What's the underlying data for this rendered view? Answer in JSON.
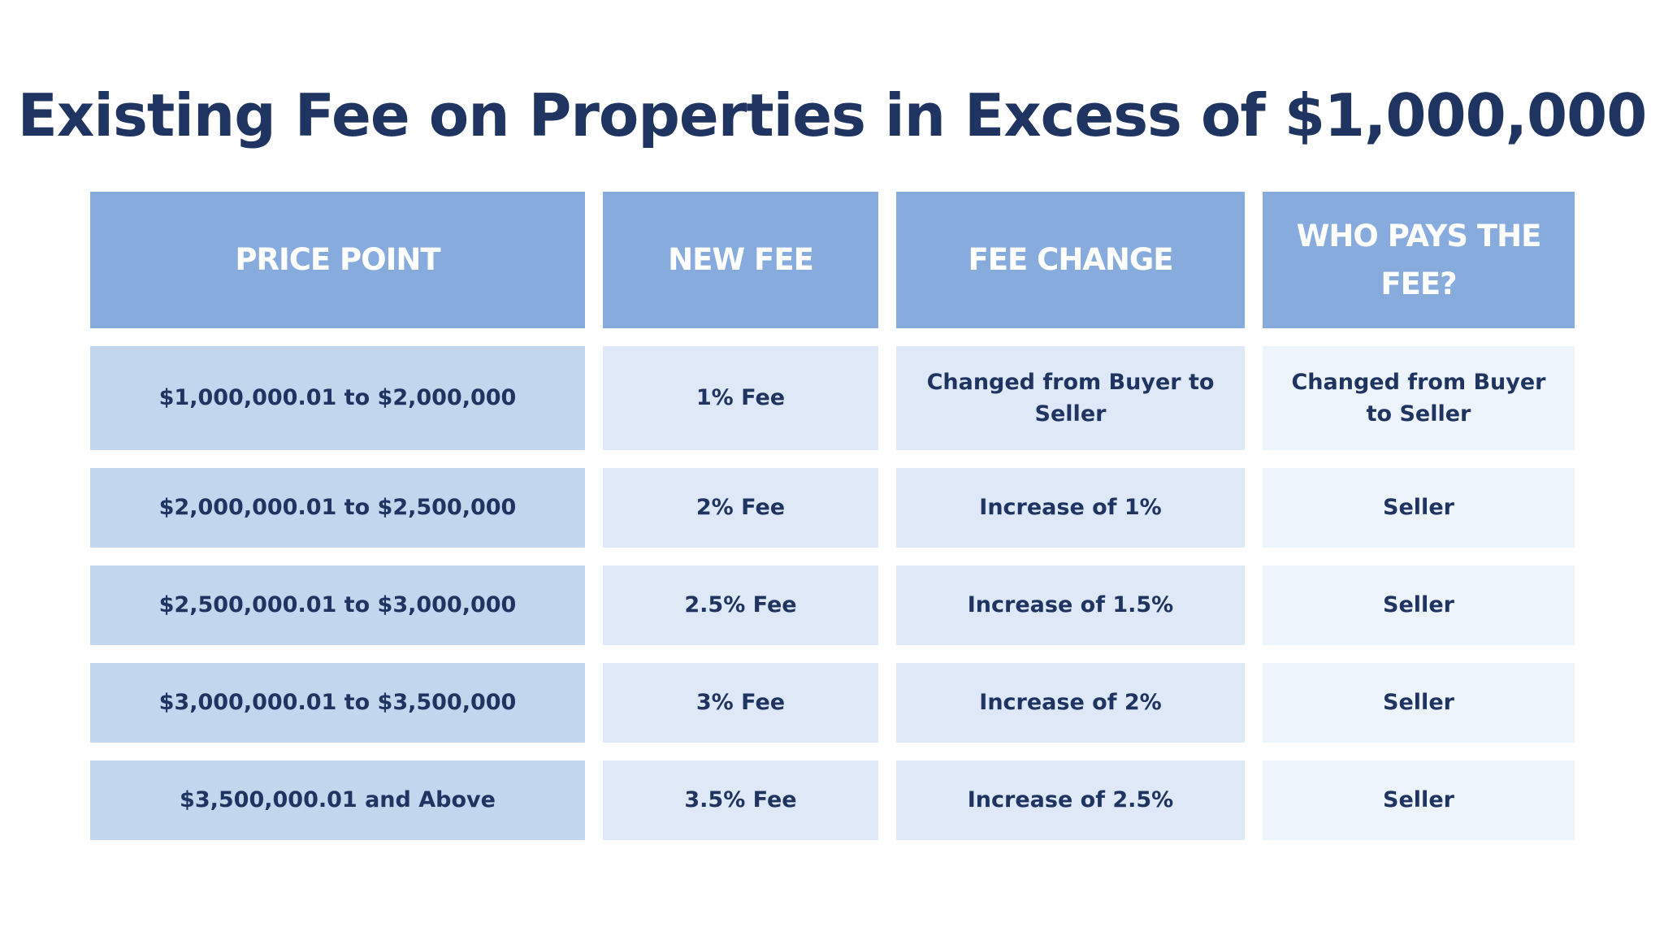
{
  "header": {
    "title": "Existing Fee on Properties in Excess of $1,000,000"
  },
  "table": {
    "columns": [
      "PRICE POINT",
      "NEW FEE",
      "FEE CHANGE",
      "WHO PAYS THE FEE?"
    ],
    "rows": [
      [
        "$1,000,000.01 to $2,000,000",
        "1% Fee",
        "Changed from Buyer to Seller",
        "Changed from Buyer to Seller"
      ],
      [
        "$2,000,000.01 to $2,500,000",
        "2% Fee",
        "Increase of 1%",
        "Seller"
      ],
      [
        "$2,500,000.01 to $3,000,000",
        "2.5% Fee",
        "Increase of 1.5%",
        "Seller"
      ],
      [
        "$3,000,000.01 to $3,500,000",
        "3% Fee",
        "Increase of 2%",
        "Seller"
      ],
      [
        "$3,500,000.01 and Above",
        "3.5% Fee",
        "Increase of 2.5%",
        "Seller"
      ]
    ]
  }
}
